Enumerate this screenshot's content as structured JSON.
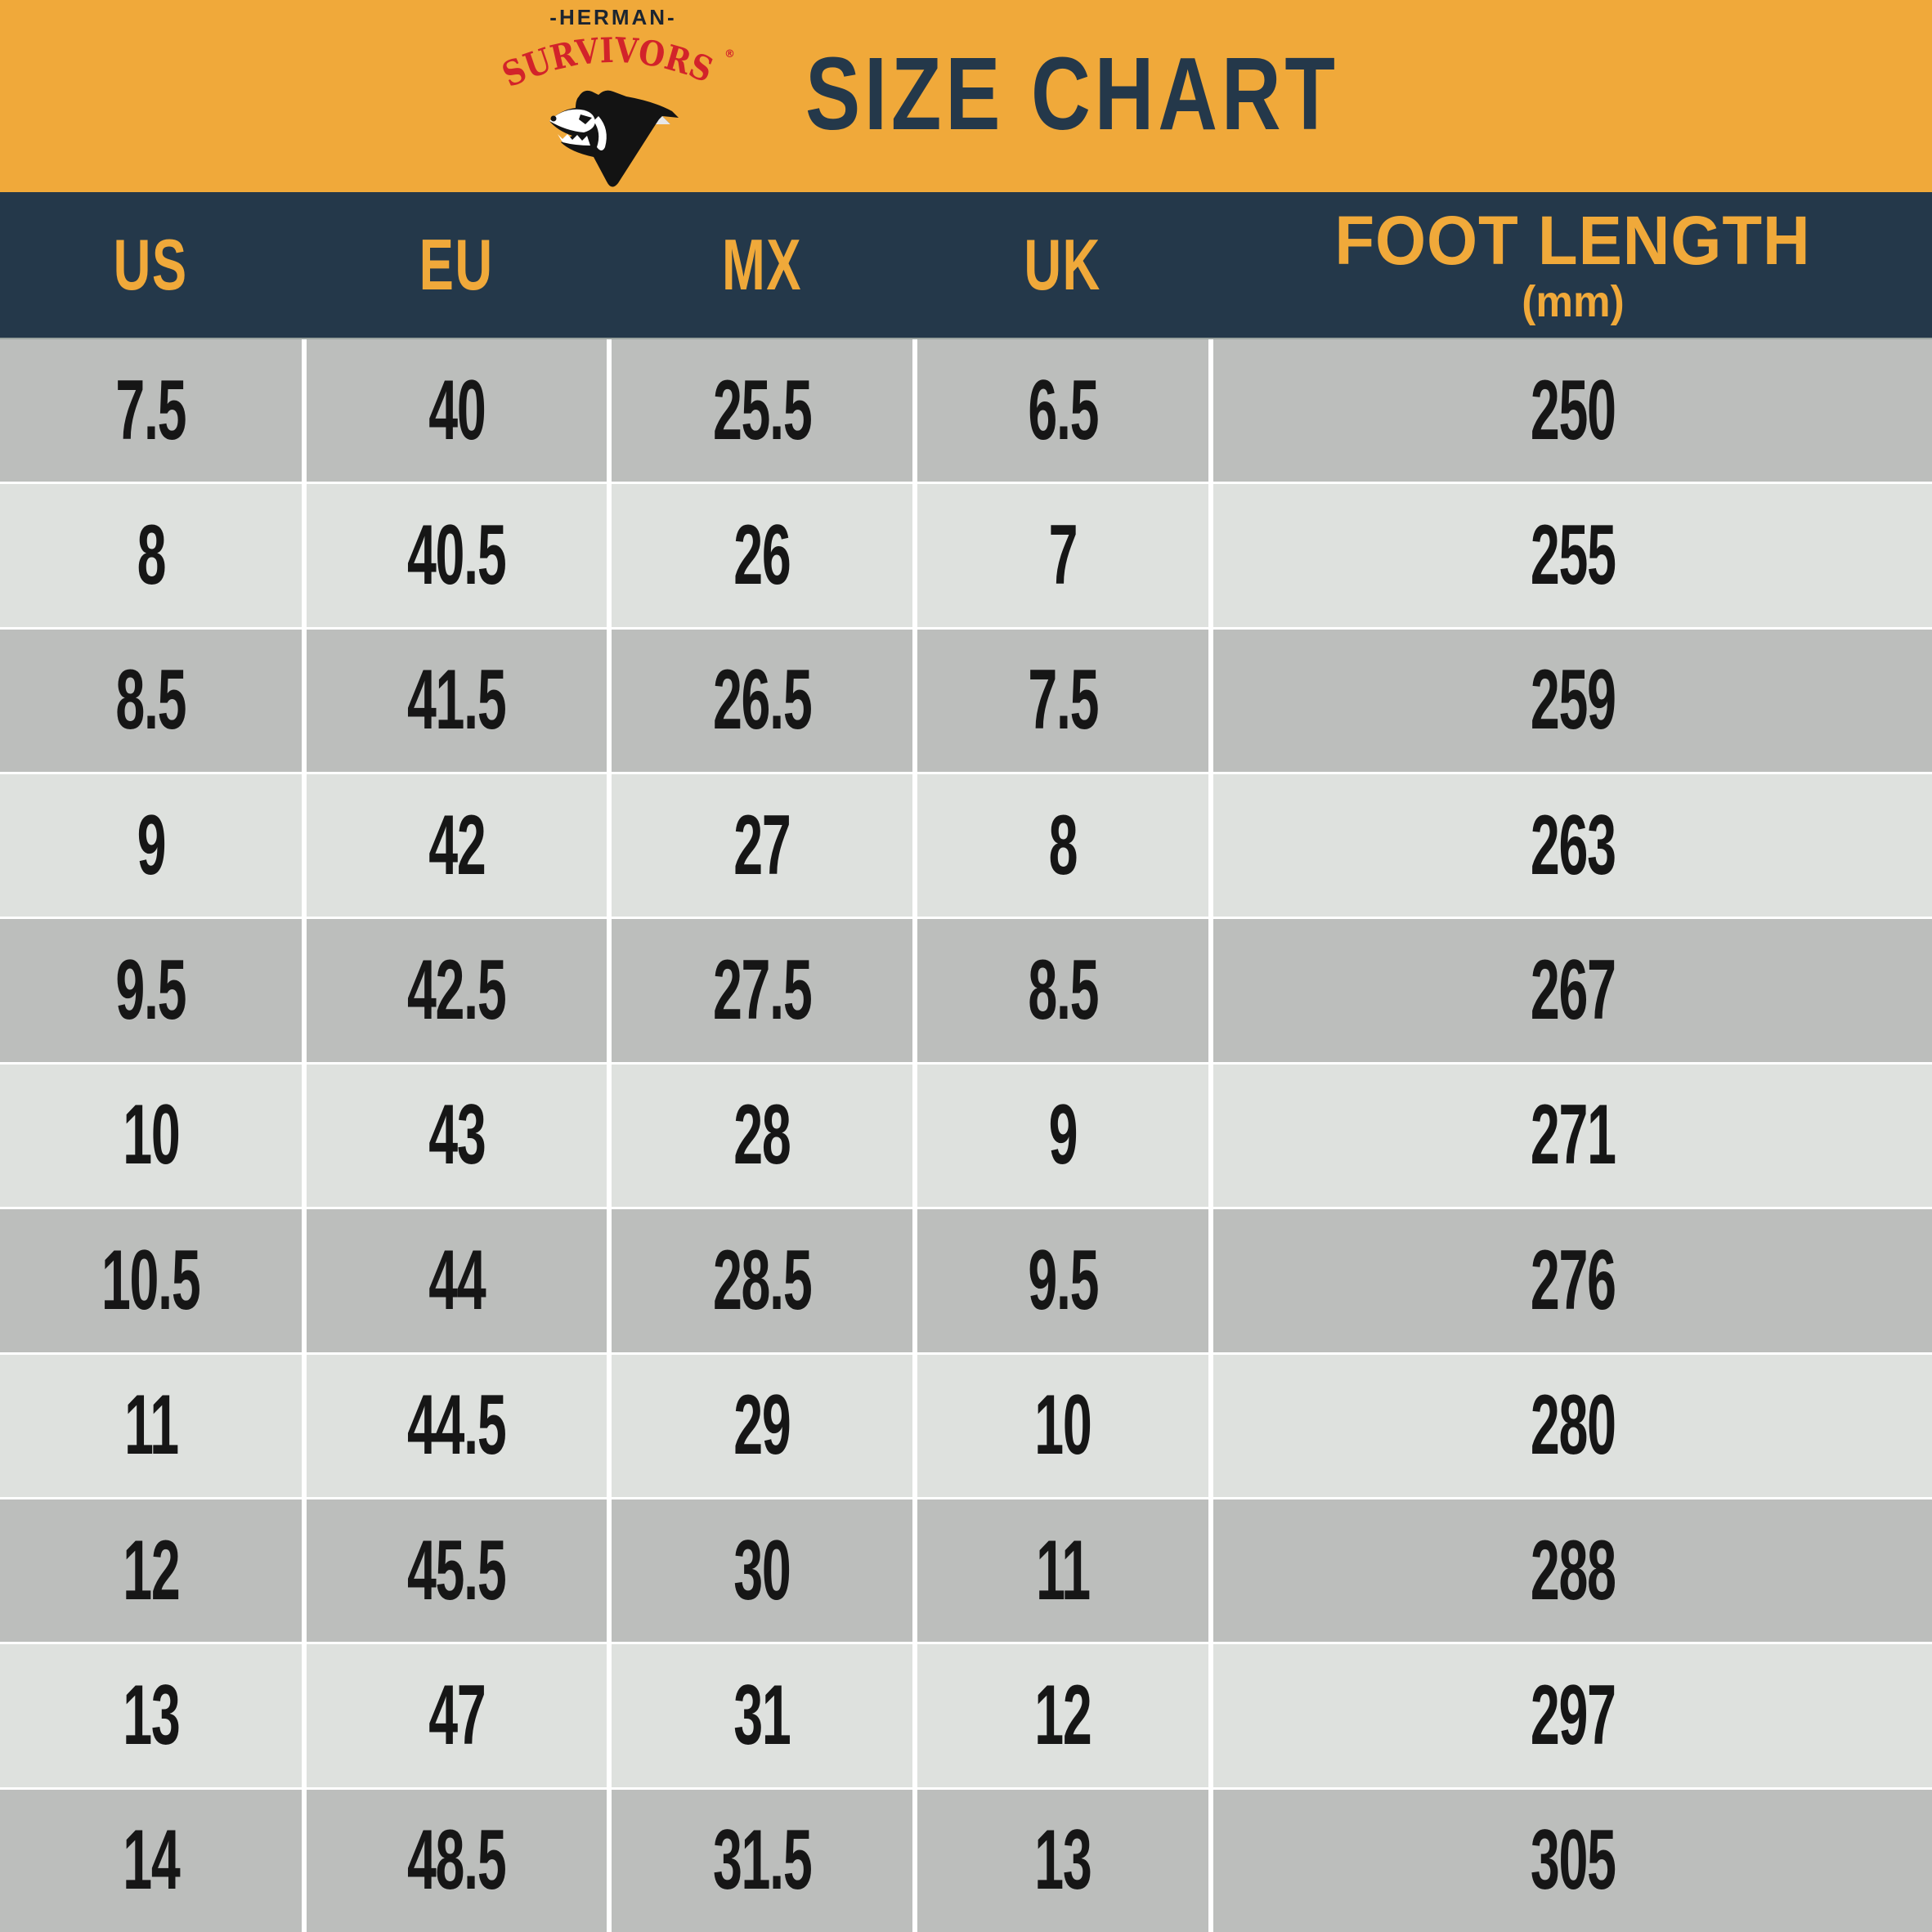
{
  "brand": {
    "top": "-HERMAN-",
    "arc": "SURVIVORS",
    "registered": "®"
  },
  "title": "SIZE CHART",
  "table": {
    "headers": [
      "US",
      "EU",
      "MX",
      "UK"
    ],
    "foot_header": "FOOT LENGTH",
    "foot_unit": "(mm)"
  },
  "chart_data": {
    "type": "table",
    "title": "SIZE CHART",
    "columns": [
      "US",
      "EU",
      "MX",
      "UK",
      "FOOT LENGTH (mm)"
    ],
    "rows": [
      [
        "7.5",
        "40",
        "25.5",
        "6.5",
        "250"
      ],
      [
        "8",
        "40.5",
        "26",
        "7",
        "255"
      ],
      [
        "8.5",
        "41.5",
        "26.5",
        "7.5",
        "259"
      ],
      [
        "9",
        "42",
        "27",
        "8",
        "263"
      ],
      [
        "9.5",
        "42.5",
        "27.5",
        "8.5",
        "267"
      ],
      [
        "10",
        "43",
        "28",
        "9",
        "271"
      ],
      [
        "10.5",
        "44",
        "28.5",
        "9.5",
        "276"
      ],
      [
        "11",
        "44.5",
        "29",
        "10",
        "280"
      ],
      [
        "12",
        "45.5",
        "30",
        "11",
        "288"
      ],
      [
        "13",
        "47",
        "31",
        "12",
        "297"
      ],
      [
        "14",
        "48.5",
        "31.5",
        "13",
        "305"
      ]
    ]
  },
  "colors": {
    "band_orange": "#F0A93A",
    "navy": "#24384A",
    "row_dark": "#BCBEBC",
    "row_light": "#DEE1DE",
    "brand_red": "#D2232A",
    "cell_text": "#161616",
    "divider_white": "#FFFFFF"
  }
}
